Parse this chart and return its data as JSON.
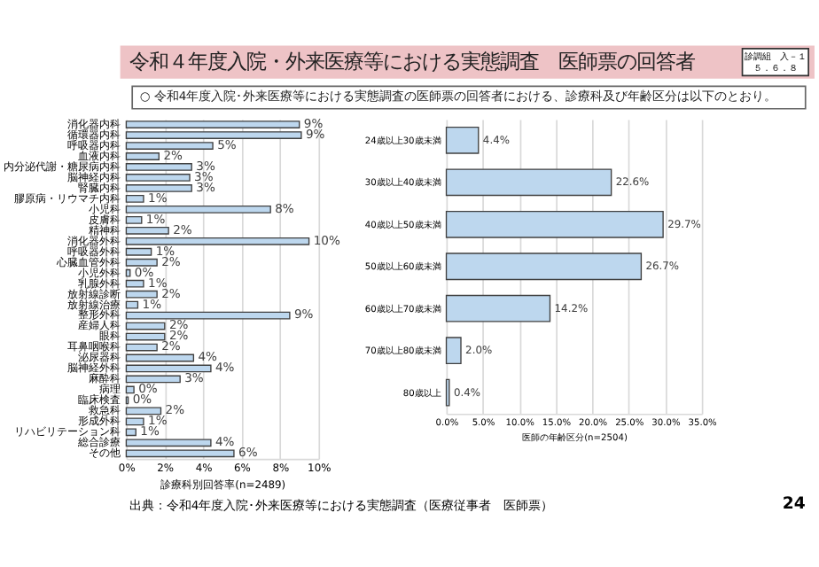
{
  "chart_data": [
    {
      "type": "bar",
      "orientation": "horizontal",
      "title": "令和４年度入院・外来医療等における実態調査　医師票の回答者",
      "subtitle": "○ 令和4年度入院･外来医療等における実態調査の医師票の回答者における、診療科及び年齢区分は以下のとおり。",
      "annotations": [
        "診調組　入－１",
        "５．６．８",
        "出典：令和4年度入院･外来医療等における実態調査（医療従事者　医師票）",
        "24"
      ],
      "categories": [
        "消化器内科",
        "循環器内科",
        "呼吸器内科",
        "血液内科",
        "内分泌代謝・糖尿病内科",
        "脳神経内科",
        "腎臓内科",
        "膠原病・リウマチ内科",
        "小児科",
        "皮膚科",
        "精神科",
        "消化器外科",
        "呼吸器外科",
        "心臓血管外科",
        "小児外科",
        "乳腺外科",
        "放射線診断",
        "放射線治療",
        "整形外科",
        "産婦人科",
        "眼科",
        "耳鼻咽喉科",
        "泌尿器科",
        "脳神経外科",
        "麻酔科",
        "病理",
        "臨床検査",
        "救急科",
        "形成外科",
        "リハビリテーション科",
        "総合診療",
        "その他"
      ],
      "values": [
        9.0,
        9.1,
        4.5,
        1.7,
        3.4,
        3.3,
        3.4,
        0.9,
        7.5,
        0.8,
        2.2,
        9.5,
        1.3,
        1.6,
        0.2,
        0.9,
        1.6,
        0.6,
        8.5,
        2.0,
        2.0,
        1.6,
        3.5,
        4.4,
        2.8,
        0.4,
        0.1,
        1.8,
        0.9,
        0.5,
        4.4,
        5.6
      ],
      "value_labels": [
        "9%",
        "9%",
        "5%",
        "2%",
        "3%",
        "3%",
        "3%",
        "1%",
        "8%",
        "1%",
        "2%",
        "10%",
        "1%",
        "2%",
        "0%",
        "1%",
        "2%",
        "1%",
        "9%",
        "2%",
        "2%",
        "2%",
        "4%",
        "4%",
        "3%",
        "0%",
        "0%",
        "2%",
        "1%",
        "1%",
        "4%",
        "6%"
      ],
      "color": "#bdd7ee",
      "xlabel": "診療科別回答率(n=2489)",
      "xlim": [
        0,
        10
      ],
      "xticks": [
        {
          "value": 0,
          "label": "0%"
        },
        {
          "value": 2,
          "label": "2%"
        },
        {
          "value": 4,
          "label": "4%"
        },
        {
          "value": 6,
          "label": "6%"
        },
        {
          "value": 8,
          "label": "8%"
        },
        {
          "value": 10,
          "label": "10%"
        }
      ],
      "grid": "x"
    },
    {
      "type": "bar",
      "orientation": "horizontal",
      "categories": [
        "24歳以上30歳未満",
        "30歳以上40歳未満",
        "40歳以上50歳未満",
        "50歳以上60歳未満",
        "60歳以上70歳未満",
        "70歳以上80歳未満",
        "80歳以上"
      ],
      "values": [
        4.4,
        22.6,
        29.7,
        26.7,
        14.2,
        2.0,
        0.4
      ],
      "value_labels": [
        "4.4%",
        "22.6%",
        "29.7%",
        "26.7%",
        "14.2%",
        "2.0%",
        "0.4%"
      ],
      "color": "#bdd7ee",
      "xlabel": "医師の年齢区分(n=2504)",
      "xlim": [
        0,
        35
      ],
      "xticks": [
        {
          "value": 0,
          "label": "0.0%"
        },
        {
          "value": 5,
          "label": "5.0%"
        },
        {
          "value": 10,
          "label": "10.0%"
        },
        {
          "value": 15,
          "label": "15.0%"
        },
        {
          "value": 20,
          "label": "20.0%"
        },
        {
          "value": 25,
          "label": "25.0%"
        },
        {
          "value": 30,
          "label": "30.0%"
        },
        {
          "value": 35,
          "label": "35.0%"
        }
      ],
      "grid": "x"
    }
  ]
}
